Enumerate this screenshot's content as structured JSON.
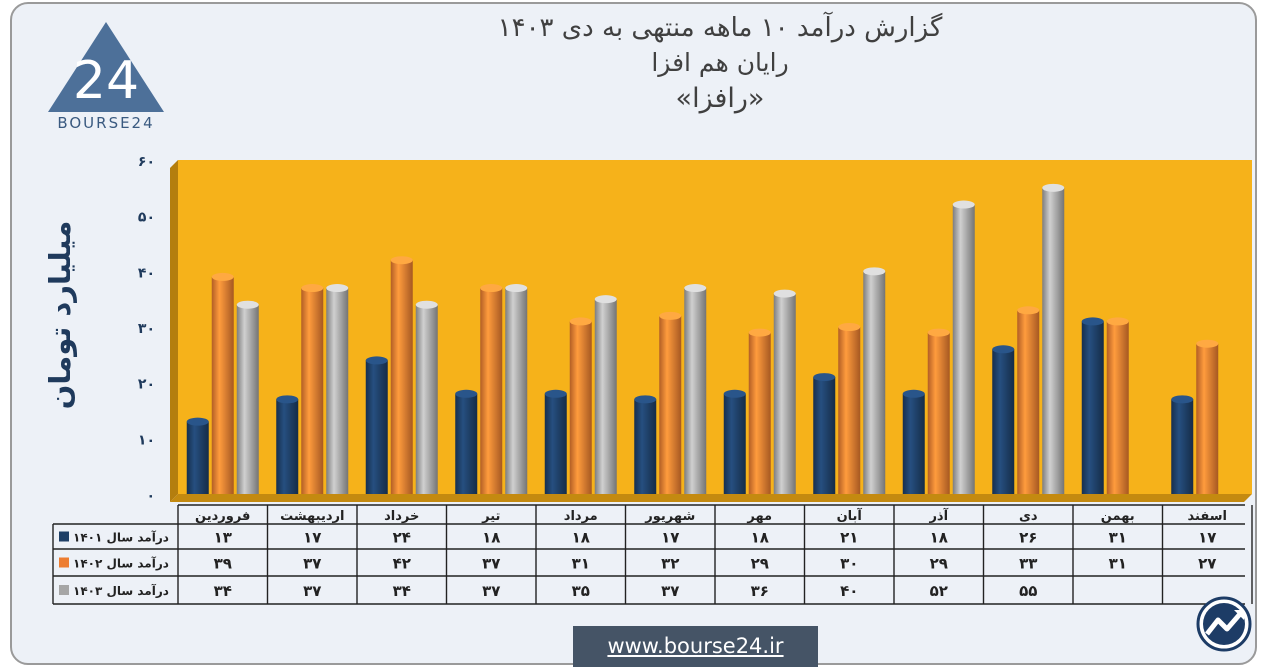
{
  "title": {
    "line1": "گزارش درآمد ۱۰ ماهه منتهی به دی ۱۴۰۳",
    "line2": "رایان هم افزا",
    "line3": "«رافزا»"
  },
  "brand": {
    "logo_text": "BOURSE24",
    "logo_number": "24",
    "website": "www.bourse24.ir",
    "corner_icon": "trend-arrow-icon"
  },
  "colors": {
    "plot_bg": "#f6b21a",
    "series_1401": "#1e3f66",
    "series_1402": "#ed7d31",
    "series_1403": "#a6a6a6",
    "axis_text": "#1f3a5c"
  },
  "chart_data": {
    "type": "bar",
    "ylabel": "میلیارد تومان",
    "ylim": [
      0,
      60
    ],
    "yticks": [
      0,
      10,
      20,
      30,
      40,
      50,
      60
    ],
    "ytick_labels": [
      "۰",
      "۱۰",
      "۲۰",
      "۳۰",
      "۴۰",
      "۵۰",
      "۶۰"
    ],
    "categories": [
      "فروردین",
      "اردیبهشت",
      "خرداد",
      "تیر",
      "مرداد",
      "شهریور",
      "مهر",
      "آبان",
      "آذر",
      "دی",
      "بهمن",
      "اسفند"
    ],
    "series": [
      {
        "name": "درآمد سال ۱۴۰۱",
        "values": [
          13,
          17,
          24,
          18,
          18,
          17,
          18,
          21,
          18,
          26,
          31,
          17
        ],
        "labels": [
          "۱۳",
          "۱۷",
          "۲۴",
          "۱۸",
          "۱۸",
          "۱۷",
          "۱۸",
          "۲۱",
          "۱۸",
          "۲۶",
          "۳۱",
          "۱۷"
        ]
      },
      {
        "name": "درآمد سال ۱۴۰۲",
        "values": [
          39,
          37,
          42,
          37,
          31,
          32,
          29,
          30,
          29,
          33,
          31,
          27
        ],
        "labels": [
          "۳۹",
          "۳۷",
          "۴۲",
          "۳۷",
          "۳۱",
          "۳۲",
          "۲۹",
          "۳۰",
          "۲۹",
          "۳۳",
          "۳۱",
          "۲۷"
        ]
      },
      {
        "name": "درآمد سال ۱۴۰۳",
        "values": [
          34,
          37,
          34,
          37,
          35,
          37,
          36,
          40,
          52,
          55,
          null,
          null
        ],
        "labels": [
          "۳۴",
          "۳۷",
          "۳۴",
          "۳۷",
          "۳۵",
          "۳۷",
          "۳۶",
          "۴۰",
          "۵۲",
          "۵۵",
          "",
          ""
        ]
      }
    ],
    "legend": "data-table-left",
    "grid": false
  }
}
